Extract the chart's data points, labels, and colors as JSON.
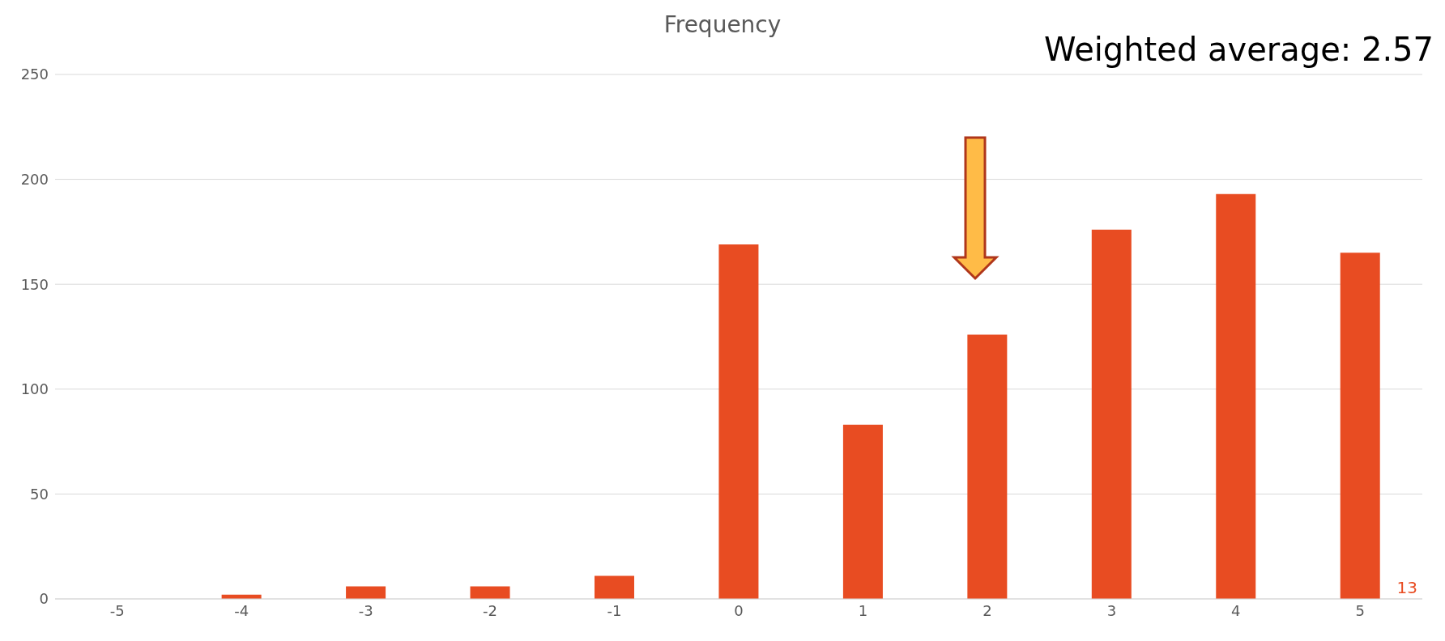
{
  "chart_data": {
    "type": "bar",
    "title": "Frequency",
    "categories": [
      "-5",
      "-4",
      "-3",
      "-2",
      "-1",
      "0",
      "1",
      "2",
      "3",
      "4",
      "5"
    ],
    "values": [
      0,
      2,
      6,
      6,
      11,
      169,
      83,
      126,
      176,
      193,
      165
    ],
    "color": "#e84c22",
    "ylim": [
      0,
      250
    ],
    "yticks": [
      0,
      50,
      100,
      150,
      200,
      250
    ],
    "grid": "y",
    "legend": false,
    "annotations": [
      "Weighted average: 2.57",
      "13"
    ]
  }
}
